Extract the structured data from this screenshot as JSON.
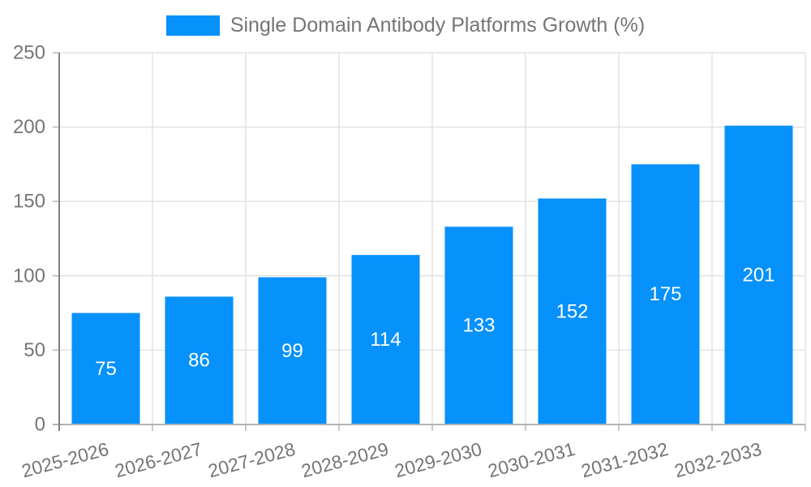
{
  "legend": {
    "label": "Single Domain Antibody Platforms Growth (%)"
  },
  "chart_data": {
    "type": "bar",
    "title": "Single Domain Antibody Platforms Growth (%)",
    "categories": [
      "2025-2026",
      "2026-2027",
      "2027-2028",
      "2028-2029",
      "2029-2030",
      "2030-2031",
      "2031-2032",
      "2032-2033"
    ],
    "values": [
      75,
      86,
      99,
      114,
      133,
      152,
      175,
      201
    ],
    "xlabel": "",
    "ylabel": "",
    "ylim": [
      0,
      250
    ],
    "yticks": [
      0,
      50,
      100,
      150,
      200,
      250
    ],
    "grid": true,
    "legend_position": "top-center",
    "value_labels": "inside-center",
    "colors": {
      "bar": "#0791fb",
      "value_label": "#ffffff",
      "axis_text": "#757575",
      "grid": "#e3e3e3",
      "axis_line_y": "#808080",
      "axis_line_x": "#b3b3b3",
      "tick": "#b9b9b9"
    }
  }
}
